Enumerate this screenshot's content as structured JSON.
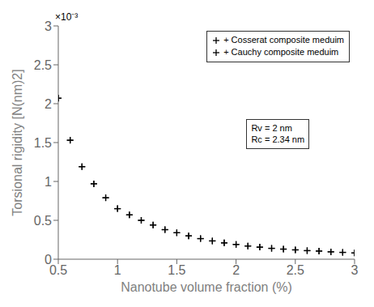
{
  "chart_data": {
    "type": "scatter",
    "xlabel": "Nanotube volume fraction (%)",
    "ylabel": "Torsional rigidity [N(nm)2]",
    "xlim": [
      0.5,
      3.0
    ],
    "ylim": [
      0,
      0.003
    ],
    "xticks": [
      0.5,
      1,
      1.5,
      2,
      2.5,
      3
    ],
    "yticks": [
      0,
      {
        "value": 0.0005,
        "label": "0.5"
      },
      {
        "value": 0.001,
        "label": "1"
      },
      {
        "value": 0.0015,
        "label": "1.5"
      },
      {
        "value": 0.002,
        "label": "2"
      },
      {
        "value": 0.0025,
        "label": "2.5"
      },
      {
        "value": 0.003,
        "label": "3"
      }
    ],
    "x": [
      0.5,
      0.6,
      0.7,
      0.8,
      0.9,
      1.0,
      1.1,
      1.2,
      1.3,
      1.4,
      1.5,
      1.6,
      1.7,
      1.8,
      1.9,
      2.0,
      2.1,
      2.2,
      2.3,
      2.4,
      2.5,
      2.6,
      2.7,
      2.8,
      2.9,
      3.0
    ],
    "series": [
      {
        "name": "+ Cosserat composite meduim",
        "color": "#000000",
        "marker": "plus",
        "values": [
          0.00207,
          0.00153,
          0.00119,
          0.00097,
          0.00079,
          0.00065,
          0.00057,
          0.0005,
          0.00044,
          0.00038,
          0.00034,
          0.0003,
          0.000265,
          0.000235,
          0.00021,
          0.00019,
          0.00017,
          0.000155,
          0.00014,
          0.00013,
          0.00012,
          0.00011,
          0.000105,
          9.5e-05,
          8.8e-05,
          8e-05
        ]
      },
      {
        "name": "+ Cauchy composite meduim",
        "color": "#000000",
        "marker": "plus",
        "values": [
          0.00207,
          0.00153,
          0.00119,
          0.00097,
          0.00079,
          0.00065,
          0.00057,
          0.0005,
          0.00044,
          0.00038,
          0.00034,
          0.0003,
          0.000265,
          0.000235,
          0.00021,
          0.00019,
          0.00017,
          0.000155,
          0.00014,
          0.00013,
          0.00012,
          0.00011,
          0.000105,
          9.5e-05,
          8.8e-05,
          8e-05
        ]
      }
    ],
    "annotations": [
      "×10⁻³",
      "Rv = 2 nm\nRc = 2.34 nm"
    ],
    "legend": "upper right",
    "grid": false
  }
}
